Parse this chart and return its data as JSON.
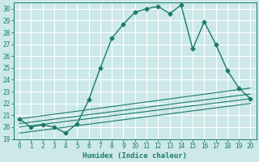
{
  "title": "",
  "xlabel": "Humidex (Indice chaleur)",
  "background_color": "#cce8e8",
  "grid_color": "#ffffff",
  "line_color": "#1a7a6e",
  "xlim": [
    -0.5,
    20.5
  ],
  "ylim": [
    19,
    30.5
  ],
  "xticks": [
    0,
    1,
    2,
    3,
    4,
    5,
    6,
    7,
    8,
    9,
    10,
    11,
    12,
    13,
    14,
    15,
    16,
    17,
    18,
    19,
    20
  ],
  "yticks": [
    19,
    20,
    21,
    22,
    23,
    24,
    25,
    26,
    27,
    28,
    29,
    30
  ],
  "main_series": {
    "x": [
      0,
      1,
      2,
      3,
      4,
      5,
      6,
      7,
      8,
      9,
      10,
      11,
      12,
      13,
      14,
      15,
      16,
      17,
      18,
      19,
      20
    ],
    "y": [
      20.7,
      20.0,
      20.2,
      20.0,
      19.5,
      20.3,
      22.3,
      25.0,
      27.5,
      28.7,
      29.7,
      30.0,
      30.2,
      29.6,
      30.3,
      26.6,
      28.9,
      27.0,
      24.8,
      23.3,
      22.4
    ]
  },
  "linear_series": [
    {
      "x0": 0,
      "y0": 20.7,
      "x1": 20,
      "y1": 23.3
    },
    {
      "x0": 0,
      "y0": 20.3,
      "x1": 20,
      "y1": 22.8
    },
    {
      "x0": 0,
      "y0": 20.0,
      "x1": 20,
      "y1": 22.4
    },
    {
      "x0": 0,
      "y0": 19.5,
      "x1": 20,
      "y1": 22.0
    }
  ]
}
